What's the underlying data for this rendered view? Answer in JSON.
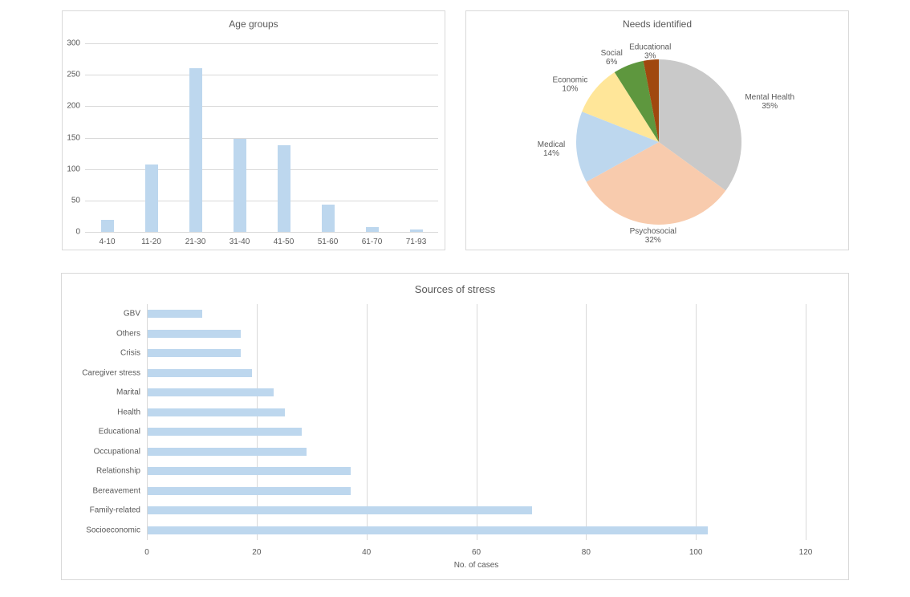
{
  "report": {
    "background": "#ffffff"
  },
  "colors": {
    "bar_fill": "#bdd7ee",
    "grid": "#d9d9d9",
    "axis_text": "#595959",
    "title_text": "#595959",
    "panel_border": "#d9d9d9"
  },
  "chart_data": [
    {
      "type": "bar",
      "orientation": "vertical",
      "title": "Age groups",
      "categories": [
        "4-10",
        "11-20",
        "21-30",
        "31-40",
        "41-50",
        "51-60",
        "61-70",
        "71-93"
      ],
      "values": [
        19,
        107,
        260,
        148,
        138,
        43,
        8,
        4
      ],
      "xlabel": "",
      "ylabel": "",
      "ylim": [
        0,
        300
      ],
      "ytick_step": 50,
      "yticks": [
        0,
        50,
        100,
        150,
        200,
        250,
        300
      ],
      "grid": true,
      "legend_position": "none",
      "bar_color": "#bdd7ee"
    },
    {
      "type": "pie",
      "title": "Needs identified",
      "labels": [
        "Mental Health",
        "Psychosocial",
        "Medical",
        "Economic",
        "Social",
        "Educational"
      ],
      "values": [
        35,
        32,
        14,
        10,
        6,
        3
      ],
      "value_suffix": "%",
      "slice_colors": [
        "#c9c9c9",
        "#f8cbad",
        "#bdd7ee",
        "#ffe699",
        "#5e973e",
        "#a0480f"
      ],
      "start_angle_deg": 0,
      "direction": "clockwise",
      "legend_position": "none",
      "labels_outside": true
    },
    {
      "type": "bar",
      "orientation": "horizontal",
      "title": "Sources of stress",
      "categories": [
        "GBV",
        "Others",
        "Crisis",
        "Caregiver stress",
        "Marital",
        "Health",
        "Educational",
        "Occupational",
        "Relationship",
        "Bereavement",
        "Family-related",
        "Socioeconomic"
      ],
      "values": [
        10,
        17,
        17,
        19,
        23,
        25,
        28,
        29,
        37,
        37,
        70,
        102
      ],
      "xlabel": "No. of cases",
      "ylabel": "",
      "xlim": [
        0,
        120
      ],
      "xtick_step": 20,
      "xticks": [
        0,
        20,
        40,
        60,
        80,
        100,
        120
      ],
      "grid": true,
      "legend_position": "none",
      "bar_color": "#bdd7ee"
    }
  ]
}
